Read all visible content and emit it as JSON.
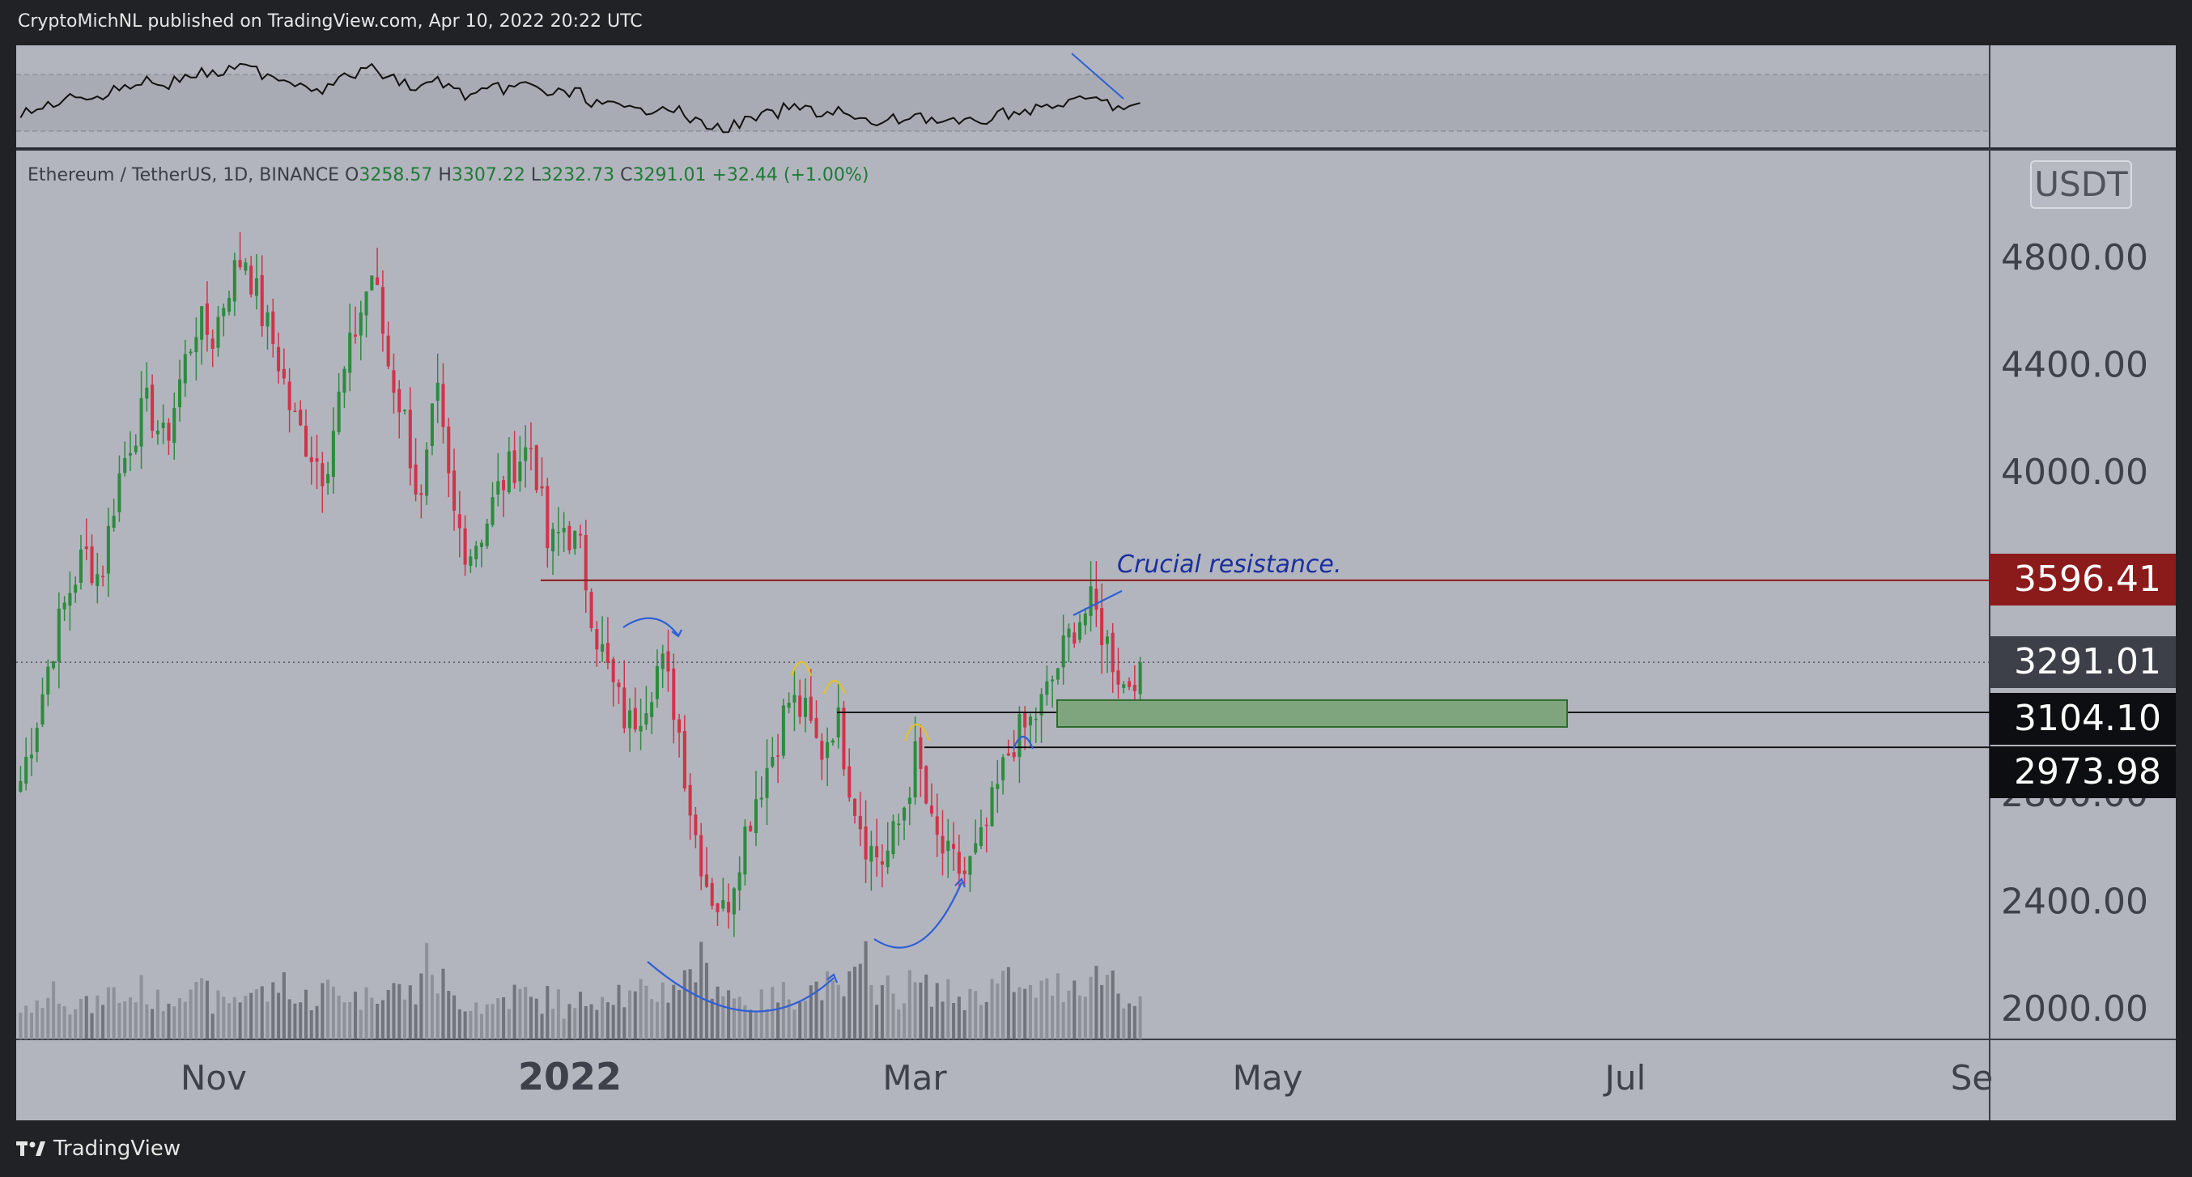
{
  "header": {
    "publish_text": "CryptoMichNL published on TradingView.com, Apr 10, 2022 20:22 UTC"
  },
  "footer": {
    "brand": "TradingView"
  },
  "legend": {
    "pair": "Ethereum / TetherUS, 1D, BINANCE",
    "open_label": "O",
    "open": "3258.57",
    "high_label": "H",
    "high": "3307.22",
    "low_label": "L",
    "low": "3232.73",
    "close_label": "C",
    "close": "3291.01",
    "change": "+32.44 (+1.00%)"
  },
  "currency_badge": "USDT",
  "annotation": "Crucial resistance.",
  "price_tags": {
    "resistance": "3596.41",
    "last": "3291.01",
    "level_1": "3104.10",
    "level_2": "2973.98"
  },
  "colors": {
    "background": "#b2b5be",
    "up": "#2e8b3e",
    "down": "#d0344a",
    "resistance": "#8b1a1a",
    "zone": "#7fa57e",
    "annotation": "#1b2f9e",
    "top_header": "#202226"
  },
  "chart_data": {
    "type": "candlestick",
    "symbol": "Ethereum / TetherUS",
    "interval": "1D",
    "exchange": "BINANCE",
    "y_ticks": [
      "4800.00",
      "4400.00",
      "4000.00",
      "2800.00",
      "2400.00",
      "2000.00"
    ],
    "x_ticks": [
      "Nov",
      "2022",
      "Mar",
      "May",
      "Jul",
      "Se"
    ],
    "ylim": [
      1890,
      5110
    ],
    "horizontal_levels": [
      {
        "price": 3596.41,
        "role": "resistance"
      },
      {
        "price": 3104.1,
        "role": "support"
      },
      {
        "price": 2973.98,
        "role": "support"
      }
    ],
    "zone": {
      "from": 3050,
      "to": 3150
    },
    "series_anchor_closes": [
      2850,
      3080,
      3350,
      3550,
      3700,
      3600,
      3950,
      4150,
      4250,
      4100,
      4350,
      4560,
      4500,
      4700,
      4820,
      4600,
      4450,
      4200,
      4100,
      4000,
      4300,
      4550,
      4750,
      4400,
      4200,
      3850,
      4300,
      3850,
      3700,
      3800,
      3950,
      4050,
      4100,
      3700,
      3800,
      3700,
      3400,
      3200,
      3050,
      3150,
      3300,
      3100,
      2700,
      2450,
      2350,
      2600,
      2800,
      2950,
      3150,
      3100,
      2950,
      3100,
      2800,
      2600,
      2550,
      2700,
      2950,
      2650,
      2550,
      2500,
      2600,
      2800,
      3000,
      3050,
      3150,
      3300,
      3450,
      3500,
      3350,
      3200,
      3291
    ],
    "volume_relative": [
      0.35,
      0.5,
      0.6,
      0.45,
      0.4,
      0.55,
      0.5,
      0.6,
      0.45,
      0.5,
      0.7,
      0.55,
      0.45,
      0.5,
      0.6,
      0.55,
      0.7,
      0.45,
      0.5,
      0.6,
      0.55,
      0.5,
      0.65,
      0.6,
      0.55,
      0.9,
      0.7,
      0.5,
      0.45,
      0.4,
      0.5,
      0.55,
      0.45,
      0.5,
      0.35,
      0.45,
      0.55,
      0.6,
      0.5,
      0.55,
      0.6,
      0.7,
      0.9,
      0.75,
      0.6,
      0.5,
      0.45,
      0.5,
      0.55,
      0.6,
      0.65,
      0.55,
      0.7,
      1.0,
      0.6,
      0.55,
      0.65,
      0.6,
      0.55,
      0.5,
      0.6,
      0.65,
      0.7,
      0.55,
      0.6,
      0.65,
      0.7,
      0.75,
      0.8,
      0.55,
      0.4
    ]
  }
}
